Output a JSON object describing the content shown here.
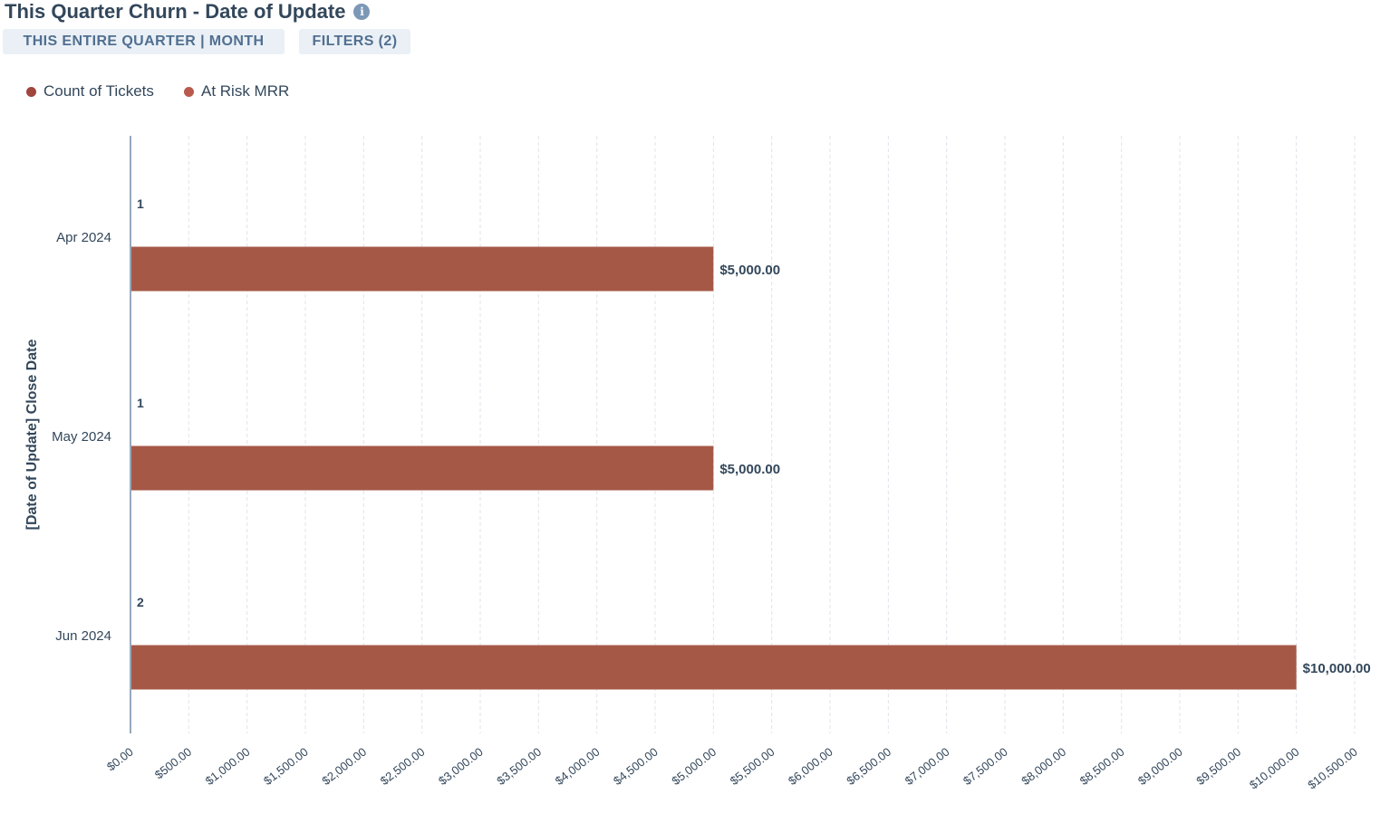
{
  "header": {
    "title": "This Quarter Churn - Date of Update",
    "info_icon": "info-icon"
  },
  "filters": {
    "date_range_label": "THIS ENTIRE QUARTER | MONTH",
    "filters_label": "FILTERS (2)"
  },
  "colors": {
    "bar": "#a65847",
    "count_dot": "#a0463c",
    "mrr_dot": "#b85a4c",
    "text": "#33475b",
    "axis": "#516f90",
    "grid": "#dfe3eb"
  },
  "chart_data": {
    "type": "bar",
    "orientation": "horizontal",
    "title": "This Quarter Churn - Date of Update",
    "ylabel": "[Date of Update] Close Date",
    "xlabel": "",
    "categories": [
      "Apr 2024",
      "May 2024",
      "Jun 2024"
    ],
    "series": [
      {
        "name": "Count of Tickets",
        "values": [
          1,
          1,
          2
        ]
      },
      {
        "name": "At Risk MRR",
        "values": [
          5000,
          5000,
          10000
        ]
      }
    ],
    "xlim": [
      0,
      10500
    ],
    "x_tick_step": 500,
    "x_tick_labels": [
      "$0.00",
      "$500.00",
      "$1,000.00",
      "$1,500.00",
      "$2,000.00",
      "$2,500.00",
      "$3,000.00",
      "$3,500.00",
      "$4,000.00",
      "$4,500.00",
      "$5,000.00",
      "$5,500.00",
      "$6,000.00",
      "$6,500.00",
      "$7,000.00",
      "$7,500.00",
      "$8,000.00",
      "$8,500.00",
      "$9,000.00",
      "$9,500.00",
      "$10,000.00",
      "$10,500.00"
    ],
    "data_labels": {
      "count": [
        "1",
        "1",
        "2"
      ],
      "mrr": [
        "$5,000.00",
        "$5,000.00",
        "$10,000.00"
      ]
    },
    "grid": true,
    "legend_position": "top-left"
  }
}
